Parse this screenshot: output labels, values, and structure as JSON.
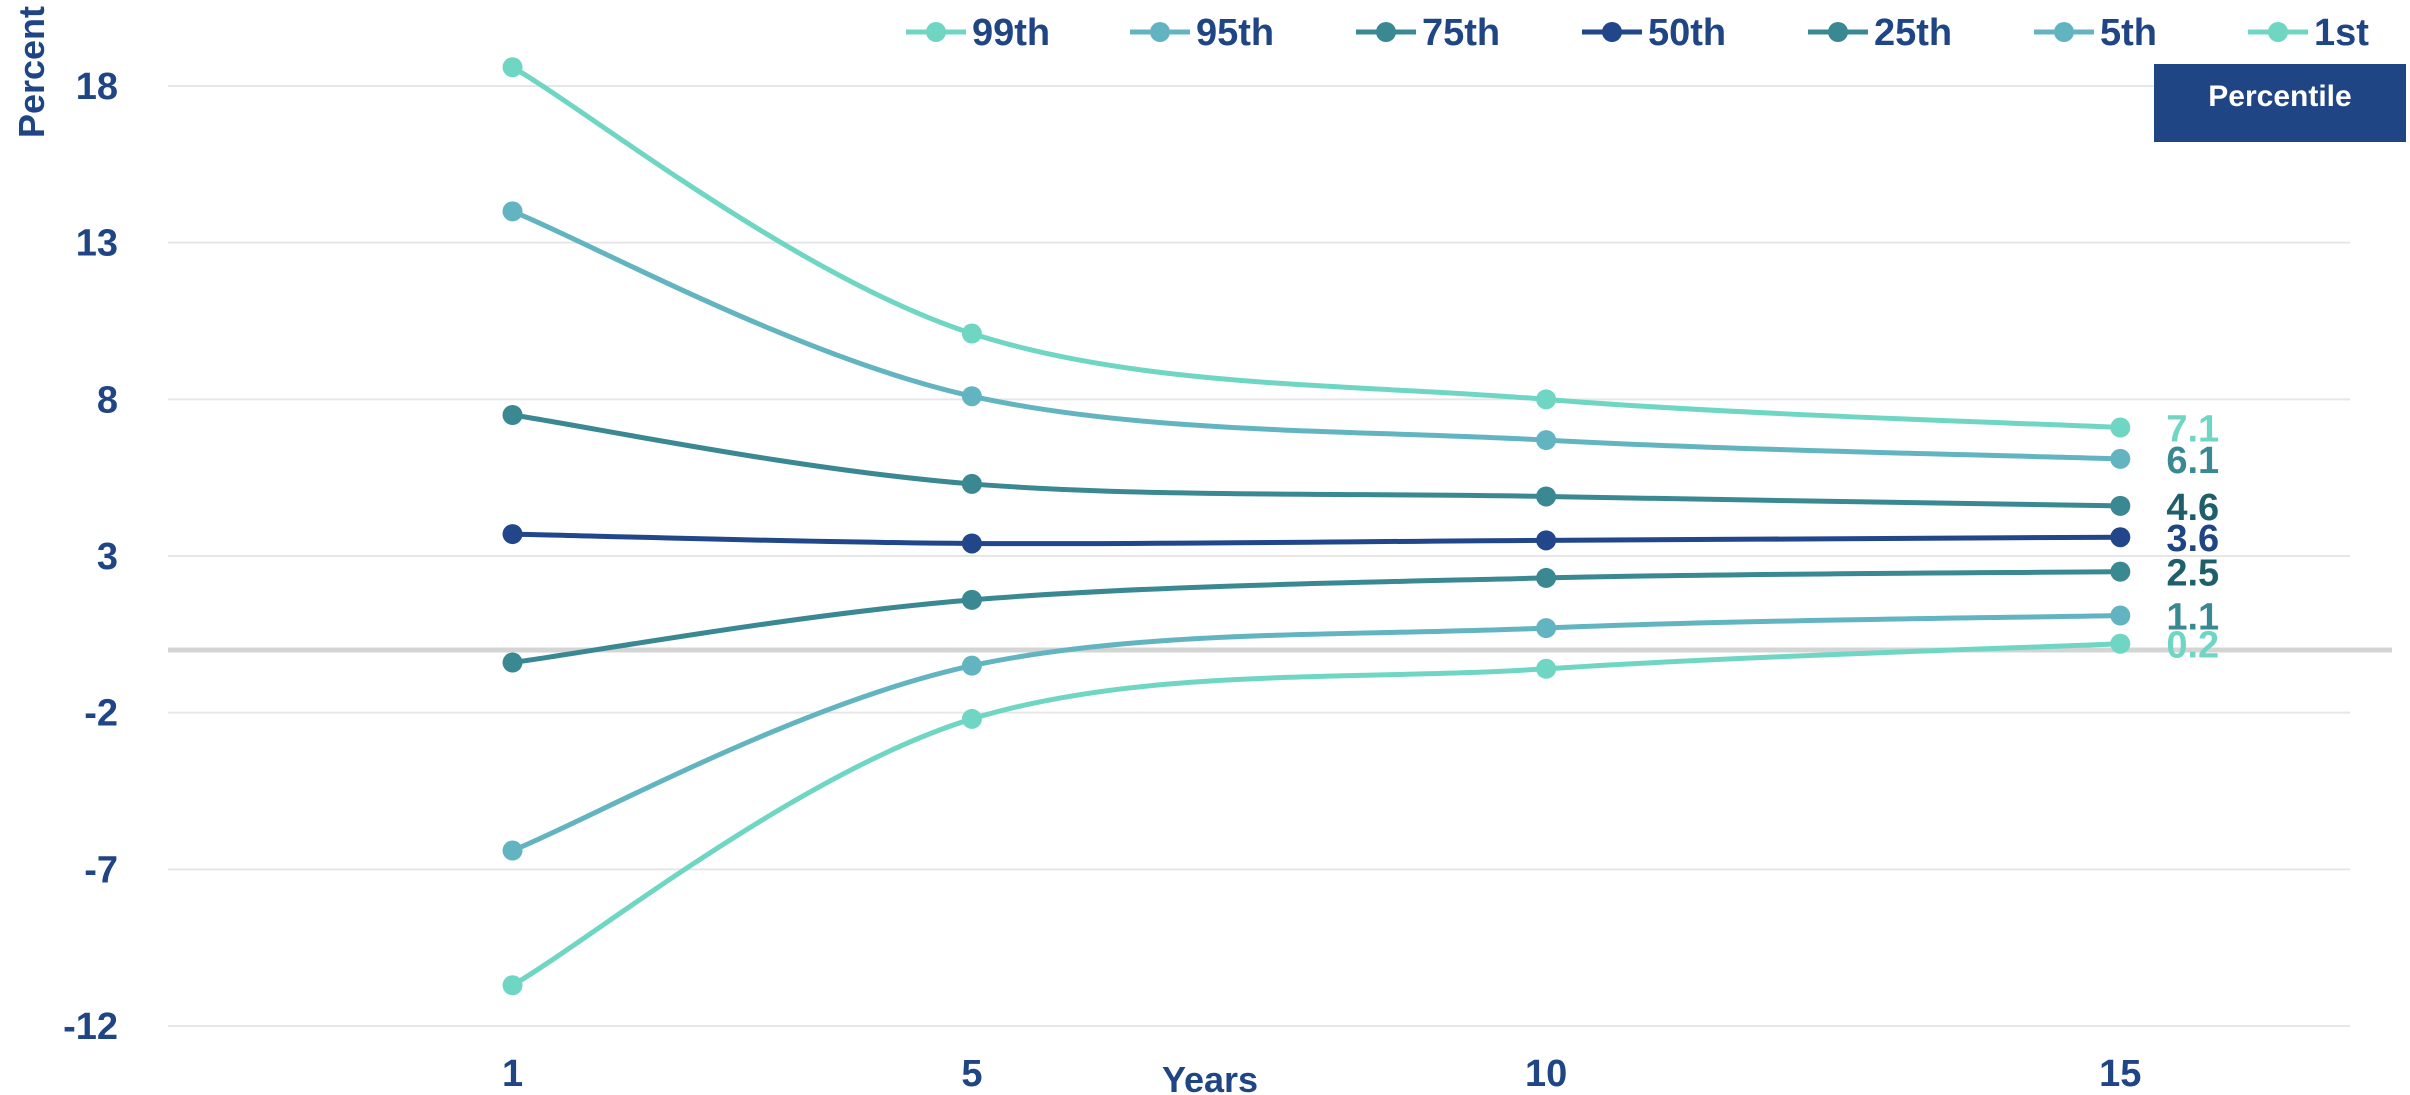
{
  "chart_data": {
    "type": "line",
    "xlabel": "Years",
    "ylabel": "Percent",
    "legend_title": "Percentile",
    "legend_position": "top",
    "grid": true,
    "x": [
      1,
      5,
      10,
      15
    ],
    "x_tick_labels": [
      "1",
      "5",
      "10",
      "15"
    ],
    "xlim": [
      -2,
      17
    ],
    "ylim": [
      -12,
      18
    ],
    "y_ticks": [
      18,
      13,
      8,
      3,
      -2,
      -7,
      -12
    ],
    "y_tick_labels": [
      "18",
      "13",
      "8",
      "3",
      "-2",
      "-7",
      "-12"
    ],
    "zero_line": true,
    "series": [
      {
        "name": "99th",
        "color": "#6fd6c4",
        "values": [
          18.6,
          10.1,
          8.0,
          7.1
        ],
        "end_label": "7.1"
      },
      {
        "name": "95th",
        "color": "#63b4c1",
        "values": [
          14.0,
          8.1,
          6.7,
          6.1
        ],
        "end_label": "6.1"
      },
      {
        "name": "75th",
        "color": "#3a8892",
        "values": [
          7.5,
          5.3,
          4.9,
          4.6
        ],
        "end_label": "4.6"
      },
      {
        "name": "50th",
        "color": "#22468a",
        "values": [
          3.7,
          3.4,
          3.5,
          3.6
        ],
        "end_label": "3.6"
      },
      {
        "name": "25th",
        "color": "#3a8892",
        "values": [
          -0.4,
          1.6,
          2.3,
          2.5
        ],
        "end_label": "2.5"
      },
      {
        "name": "5th",
        "color": "#63b4c1",
        "values": [
          -6.4,
          -0.5,
          0.7,
          1.1
        ],
        "end_label": "1.1"
      },
      {
        "name": "1st",
        "color": "#6fd6c4",
        "values": [
          -10.7,
          -2.2,
          -0.6,
          0.2
        ],
        "end_label": "0.2"
      }
    ]
  },
  "colors": {
    "axis_text": "#1f4585",
    "grid": "#e6e6e6",
    "zero_line": "#d4d4d4",
    "badge_bg": "#1f4585",
    "badge_text": "#ffffff",
    "end_label_colors": [
      "#6fd6c4",
      "#3a8892",
      "#1f5f6b",
      "#1f4585",
      "#1f5f6b",
      "#3a8892",
      "#6fd6c4"
    ]
  }
}
